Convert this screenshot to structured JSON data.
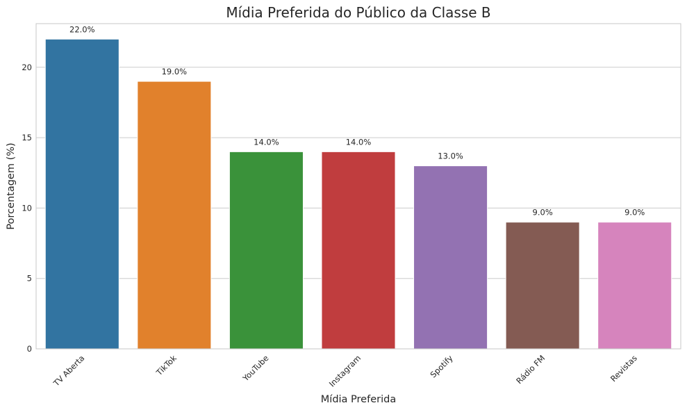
{
  "chart_data": {
    "type": "bar",
    "title": "Mídia Preferida do Público da Classe B",
    "xlabel": "Mídia Preferida",
    "ylabel": "Porcentagem (%)",
    "categories": [
      "TV Aberta",
      "TikTok",
      "YouTube",
      "Instagram",
      "Spotify",
      "Rádio FM",
      "Revistas"
    ],
    "values": [
      22.0,
      19.0,
      14.0,
      14.0,
      13.0,
      9.0,
      9.0
    ],
    "data_labels": [
      "22.0%",
      "19.0%",
      "14.0%",
      "14.0%",
      "13.0%",
      "9.0%",
      "9.0%"
    ],
    "colors": [
      "#3274a1",
      "#e1812c",
      "#3a923a",
      "#c03d3e",
      "#9372b2",
      "#845b53",
      "#d684bd"
    ],
    "ylim": [
      0,
      23.1
    ],
    "yticks": [
      0,
      5,
      10,
      15,
      20
    ],
    "grid": true,
    "legend": "none"
  }
}
